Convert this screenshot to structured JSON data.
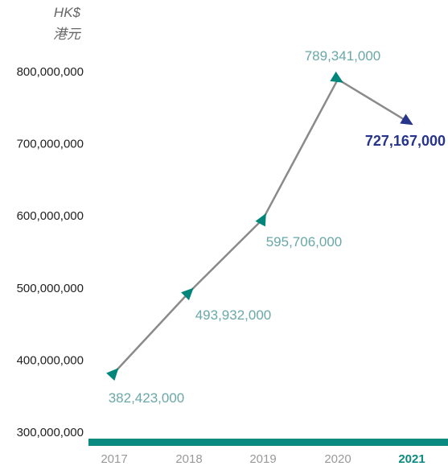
{
  "chart_data": {
    "type": "line",
    "unit_en": "HK$",
    "unit_zh": "港元",
    "categories": [
      "2017",
      "2018",
      "2019",
      "2020",
      "2021"
    ],
    "highlight_category": "2021",
    "series": [
      {
        "values": [
          382423000,
          493932000,
          595706000,
          789341000,
          727167000
        ],
        "data_labels": [
          "382,423,000",
          "493,932,000",
          "595,706,000",
          "789,341,000",
          "727,167,000"
        ]
      }
    ],
    "y_ticks": [
      300000000,
      400000000,
      500000000,
      600000000,
      700000000,
      800000000
    ],
    "y_tick_labels": [
      "300,000,000",
      "400,000,000",
      "500,000,000",
      "600,000,000",
      "700,000,000",
      "800,000,000"
    ],
    "ylim": [
      300000000,
      800000000
    ],
    "grid": false,
    "legend": "none",
    "colors": {
      "line": "#8a8a8a",
      "marker": "#00857a",
      "label": "#6aa8a7",
      "highlight": "#27348b",
      "axis_bar": "#0a8a80",
      "tick_text": "#222222",
      "category_text": "#999999"
    }
  }
}
